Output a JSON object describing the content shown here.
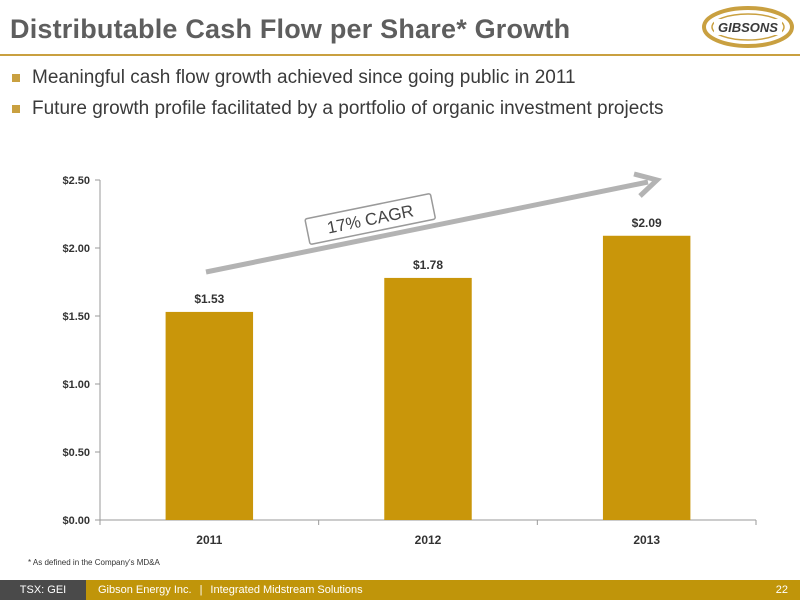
{
  "slide": {
    "title": "Distributable Cash Flow per Share* Growth",
    "bullets": [
      "Meaningful cash flow growth achieved since going public in 2011",
      "Future growth profile facilitated by a portfolio of organic investment projects"
    ],
    "footnote": "* As defined in the Company's MD&A",
    "footer": {
      "ticker": "TSX: GEI",
      "company": "Gibson Energy Inc.",
      "separator": "|",
      "tagline": "Integrated Midstream Solutions",
      "page": "22"
    },
    "logo_text": "GIBSONS"
  },
  "colors": {
    "bar": "#c9960a",
    "accent": "#c9a040",
    "footer": "#c0950a",
    "arrow": "#b3b3b3"
  },
  "chart_data": {
    "type": "bar",
    "categories": [
      "2011",
      "2012",
      "2013"
    ],
    "values": [
      1.53,
      1.78,
      2.09
    ],
    "value_labels": [
      "$1.53",
      "$1.78",
      "$2.09"
    ],
    "y_ticks": [
      0,
      0.5,
      1.0,
      1.5,
      2.0,
      2.5
    ],
    "y_tick_labels": [
      "$0.00",
      "$0.50",
      "$1.00",
      "$1.50",
      "$2.00",
      "$2.50"
    ],
    "ylim": [
      0,
      2.5
    ],
    "annotation": "17% CAGR",
    "grid": false,
    "legend": "none"
  }
}
